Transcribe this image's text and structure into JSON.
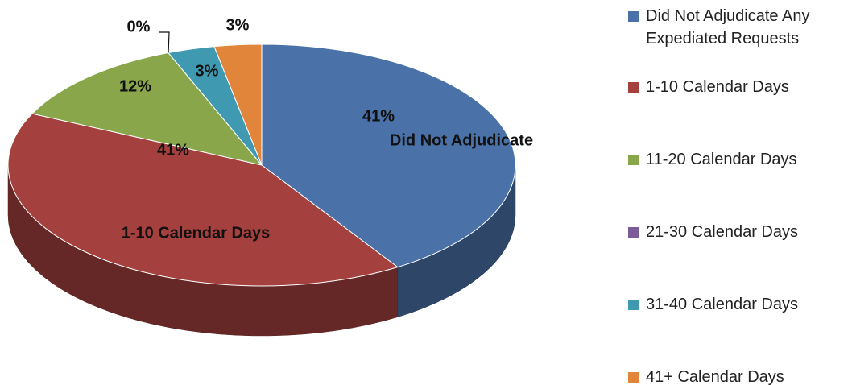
{
  "chart_data": {
    "type": "pie3d",
    "categories": [
      "Did Not Adjudicate Any Expediated Requests",
      "1-10 Calendar Days",
      "11-20 Calendar Days",
      "21-30 Calendar Days",
      "31-40 Calendar Days",
      "41+ Calendar Days"
    ],
    "values": [
      41,
      41,
      12,
      0,
      3,
      3
    ],
    "value_labels": [
      "41%",
      "41%",
      "12%",
      "0%",
      "3%",
      "3%"
    ],
    "colors": [
      "#4a72a8",
      "#a4403d",
      "#8aa64b",
      "#7b5b9c",
      "#3f99b0",
      "#e1853b"
    ],
    "annotations": [
      {
        "slice": 0,
        "text": "Did Not Adjudicate"
      },
      {
        "slice": 1,
        "text": "1-10 Calendar Days"
      }
    ],
    "legend": "right"
  }
}
